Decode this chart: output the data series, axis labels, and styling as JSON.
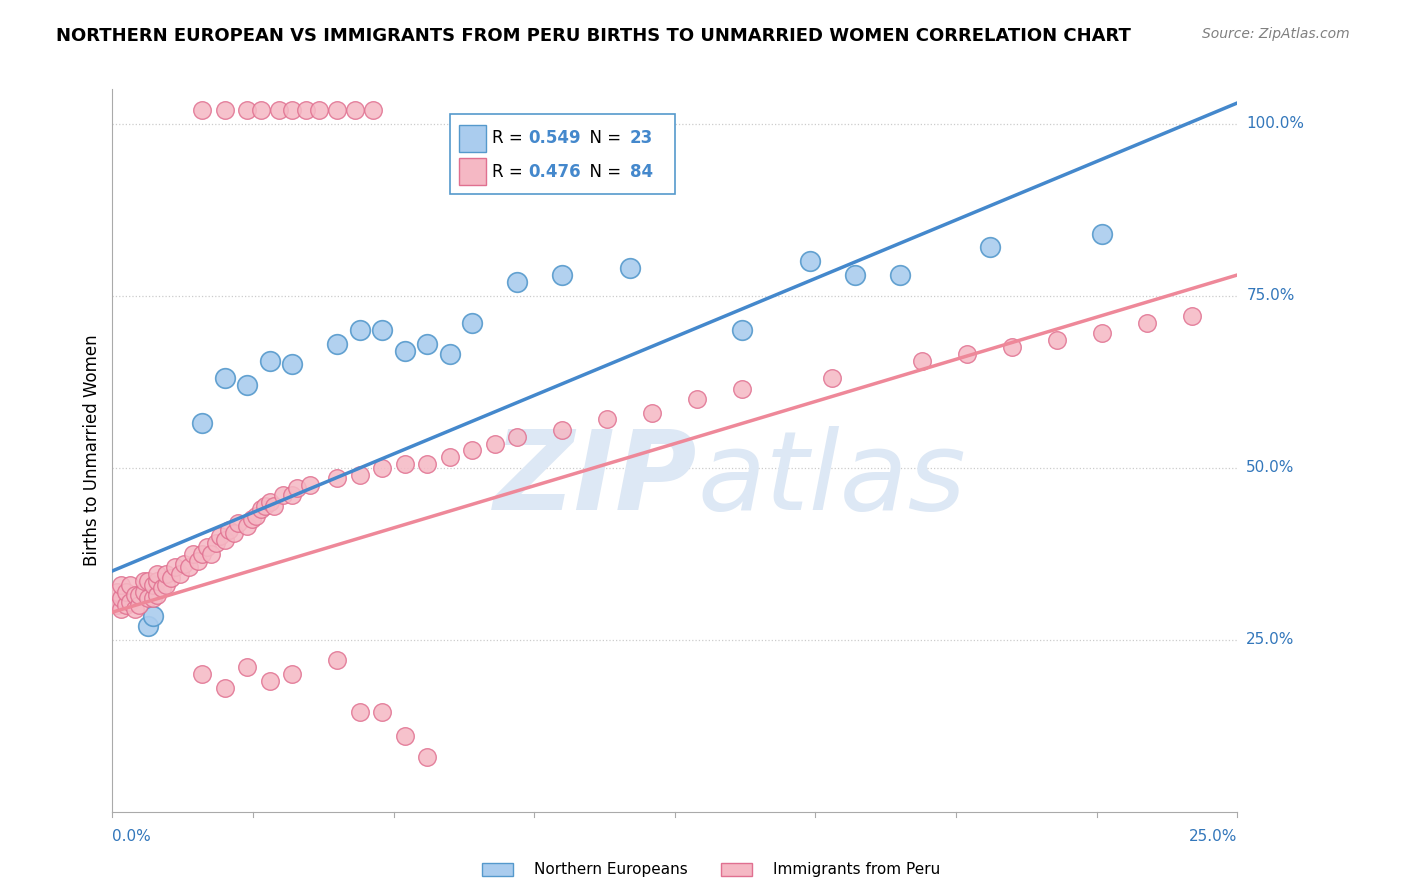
{
  "title": "NORTHERN EUROPEAN VS IMMIGRANTS FROM PERU BIRTHS TO UNMARRIED WOMEN CORRELATION CHART",
  "source": "Source: ZipAtlas.com",
  "ylabel_label": "Births to Unmarried Women",
  "blue_color": "#aaccee",
  "blue_edge": "#5599cc",
  "pink_color": "#f5b8c4",
  "pink_edge": "#e07090",
  "blue_line_color": "#4488cc",
  "pink_line_color": "#ee8899",
  "x_min": 0.0,
  "x_max": 0.25,
  "y_min": 0.0,
  "y_max": 1.05,
  "ytick_positions": [
    0.25,
    0.5,
    0.75,
    1.0
  ],
  "ytick_labels": [
    "25.0%",
    "50.0%",
    "75.0%",
    "100.0%"
  ],
  "blue_line_x0": 0.0,
  "blue_line_y0": 0.35,
  "blue_line_x1": 0.25,
  "blue_line_y1": 1.03,
  "pink_line_x0": 0.0,
  "pink_line_y0": 0.29,
  "pink_line_x1": 0.25,
  "pink_line_y1": 0.78,
  "blue_points_x": [
    0.008,
    0.009,
    0.02,
    0.025,
    0.03,
    0.035,
    0.04,
    0.05,
    0.055,
    0.06,
    0.065,
    0.07,
    0.075,
    0.08,
    0.09,
    0.1,
    0.115,
    0.14,
    0.155,
    0.165,
    0.175,
    0.195,
    0.22
  ],
  "blue_points_y": [
    0.27,
    0.285,
    0.565,
    0.63,
    0.62,
    0.655,
    0.65,
    0.68,
    0.7,
    0.7,
    0.67,
    0.68,
    0.665,
    0.71,
    0.77,
    0.78,
    0.79,
    0.7,
    0.8,
    0.78,
    0.78,
    0.82,
    0.84
  ],
  "blue_outlier_x": [
    0.195
  ],
  "blue_outlier_y": [
    0.79
  ],
  "pink_points_x": [
    0.001,
    0.001,
    0.002,
    0.002,
    0.002,
    0.003,
    0.003,
    0.004,
    0.004,
    0.005,
    0.005,
    0.006,
    0.006,
    0.007,
    0.007,
    0.008,
    0.008,
    0.009,
    0.009,
    0.01,
    0.01,
    0.01,
    0.011,
    0.012,
    0.012,
    0.013,
    0.014,
    0.015,
    0.016,
    0.017,
    0.018,
    0.019,
    0.02,
    0.021,
    0.022,
    0.023,
    0.024,
    0.025,
    0.026,
    0.027,
    0.028,
    0.03,
    0.031,
    0.032,
    0.033,
    0.034,
    0.035,
    0.036,
    0.038,
    0.04,
    0.041,
    0.044,
    0.05,
    0.055,
    0.06,
    0.065,
    0.07,
    0.075,
    0.08,
    0.085,
    0.09,
    0.1,
    0.11,
    0.12,
    0.13,
    0.14,
    0.16,
    0.18,
    0.19,
    0.2,
    0.21,
    0.22,
    0.23,
    0.24
  ],
  "pink_points_y": [
    0.3,
    0.32,
    0.295,
    0.31,
    0.33,
    0.3,
    0.32,
    0.305,
    0.33,
    0.295,
    0.315,
    0.3,
    0.315,
    0.32,
    0.335,
    0.31,
    0.335,
    0.31,
    0.33,
    0.315,
    0.335,
    0.345,
    0.325,
    0.33,
    0.345,
    0.34,
    0.355,
    0.345,
    0.36,
    0.355,
    0.375,
    0.365,
    0.375,
    0.385,
    0.375,
    0.39,
    0.4,
    0.395,
    0.41,
    0.405,
    0.42,
    0.415,
    0.425,
    0.43,
    0.44,
    0.445,
    0.45,
    0.445,
    0.46,
    0.46,
    0.47,
    0.475,
    0.485,
    0.49,
    0.5,
    0.505,
    0.505,
    0.515,
    0.525,
    0.535,
    0.545,
    0.555,
    0.57,
    0.58,
    0.6,
    0.615,
    0.63,
    0.655,
    0.665,
    0.675,
    0.685,
    0.695,
    0.71,
    0.72
  ],
  "pink_below_x": [
    0.02,
    0.025,
    0.03,
    0.035,
    0.04,
    0.05,
    0.055,
    0.06,
    0.065,
    0.07
  ],
  "pink_below_y": [
    0.2,
    0.18,
    0.21,
    0.19,
    0.2,
    0.22,
    0.145,
    0.145,
    0.11,
    0.08
  ],
  "top_pink_x": [
    0.02,
    0.025,
    0.03,
    0.033,
    0.037,
    0.04,
    0.043,
    0.046,
    0.05,
    0.054,
    0.058
  ],
  "watermark_zip": "ZIP",
  "watermark_atlas": "atlas",
  "legend_r1": "R = 0.549",
  "legend_n1": "N = 23",
  "legend_r2": "R = 0.476",
  "legend_n2": "N = 84",
  "text_color": "#3377bb",
  "tick_color": "#3377bb"
}
